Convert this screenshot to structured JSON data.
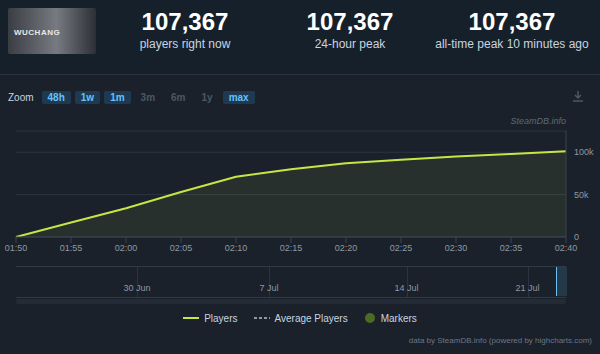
{
  "header": {
    "thumbnail_text": "WUCHANG",
    "stats": [
      {
        "value": "107,367",
        "label": "players right now"
      },
      {
        "value": "107,367",
        "label": "24-hour peak"
      },
      {
        "value": "107,367",
        "label": "all-time peak 10 minutes ago"
      }
    ]
  },
  "zoom": {
    "label": "Zoom",
    "buttons": [
      "48h",
      "1w",
      "1m",
      "3m",
      "6m",
      "1y",
      "max"
    ],
    "active": [
      "48h",
      "1w",
      "1m",
      "max"
    ]
  },
  "watermark": "SteamDB.info",
  "chart_data": {
    "type": "area",
    "x": [
      "01:50",
      "01:55",
      "02:00",
      "02:05",
      "02:10",
      "02:15",
      "02:20",
      "02:25",
      "02:30",
      "02:35",
      "02:40"
    ],
    "series": [
      {
        "name": "Players",
        "color": "#c6e646",
        "values": [
          0,
          17000,
          34000,
          53000,
          71000,
          80000,
          87000,
          91000,
          95000,
          98000,
          101000
        ]
      },
      {
        "name": "Average Players",
        "type": "line",
        "line_style": "dashed",
        "color": "#8f98a0",
        "values": [
          null,
          null,
          null,
          null,
          null,
          null,
          null,
          null,
          null,
          null,
          null
        ]
      },
      {
        "name": "Markers",
        "type": "scatter",
        "marker": "circle",
        "color": "#4c6b22",
        "values": [
          null,
          null,
          null,
          null,
          null,
          null,
          null,
          null,
          null,
          null,
          null
        ]
      }
    ],
    "ylim": [
      0,
      125000
    ],
    "yticks": [
      0,
      {
        "value": 50000,
        "label": "50k"
      },
      {
        "value": 100000,
        "label": "100k"
      }
    ],
    "grid": true,
    "legend": "bottom"
  },
  "navigator": {
    "labels": [
      "30 Jun",
      "7 Jul",
      "14 Jul",
      "21 Jul"
    ]
  },
  "credit": "data by SteamDB.info (powered by highcharts.com)"
}
